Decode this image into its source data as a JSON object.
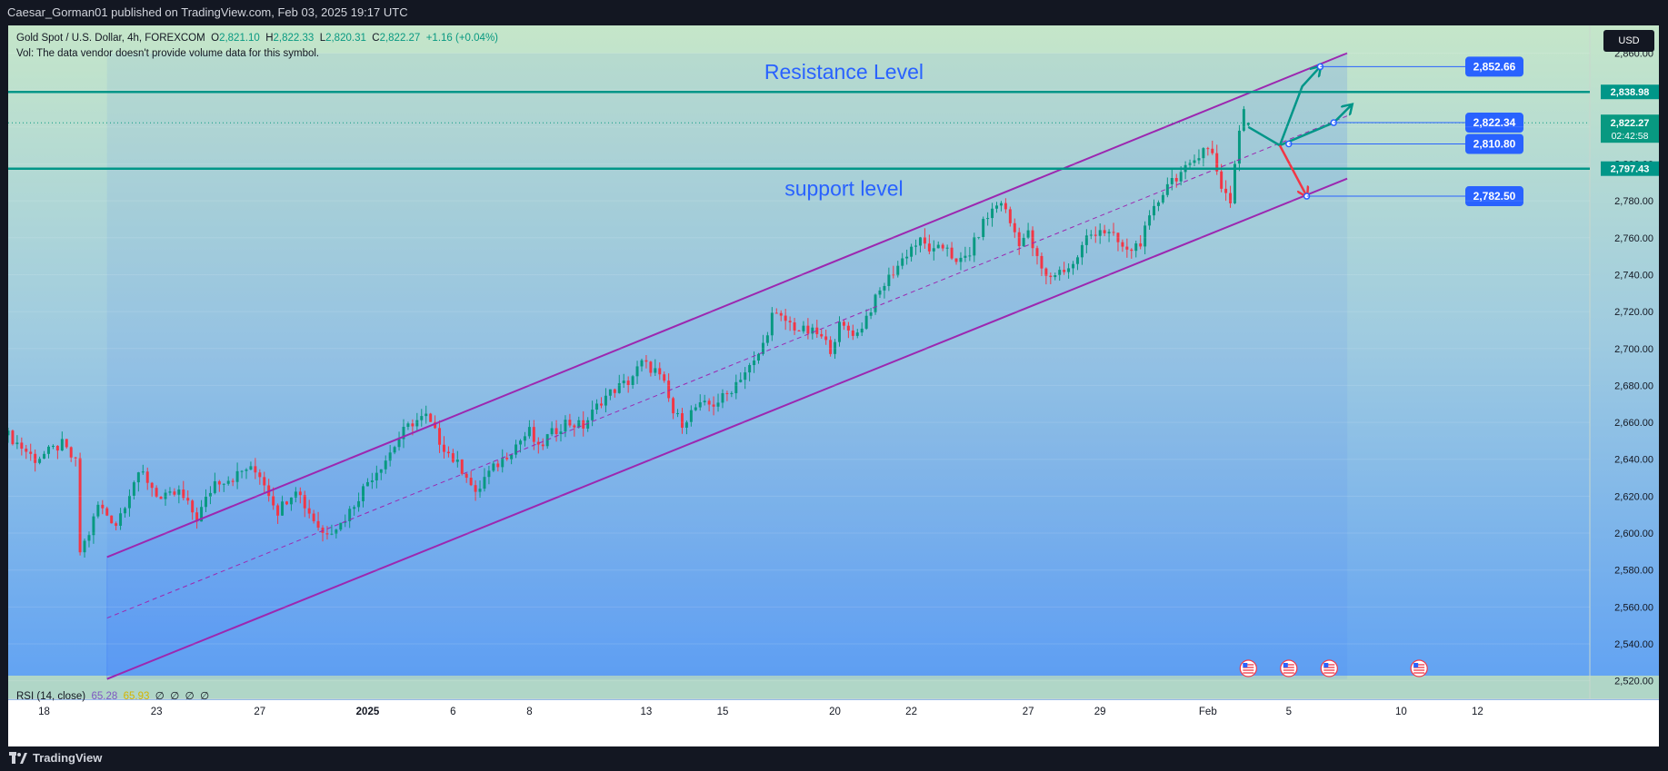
{
  "header": {
    "publisher": "Caesar_Gorman01 published on TradingView.com, Feb 03, 2025 19:17 UTC"
  },
  "legend": {
    "symbol": "Gold Spot / U.S. Dollar, 4h, FOREXCOM",
    "o_label": "O",
    "o_value": "2,821.10",
    "h_label": "H",
    "h_value": "2,822.33",
    "l_label": "L",
    "l_value": "2,820.31",
    "c_label": "C",
    "c_value": "2,822.27",
    "change": "+1.16 (+0.04%)",
    "vol_note": "Vol: The data vendor doesn't provide volume data for this symbol."
  },
  "currency_button": "USD",
  "rsi": {
    "label": "RSI (14, close)",
    "v1": "65.28",
    "v2": "65.93",
    "z1": "∅",
    "z2": "∅",
    "z3": "∅",
    "z4": "∅"
  },
  "footer": {
    "brand": "TradingView"
  },
  "colors": {
    "up": "#089981",
    "down": "#f23645",
    "channel": "#9c27b0",
    "level": "#009688",
    "label_blue": "#2962ff",
    "text_blue": "#2962ff",
    "bg_top": "#c5e6c9",
    "bg_bottom": "#5b9ef5"
  },
  "chart_data": {
    "type": "candlestick",
    "symbol": "Gold Spot / U.S. Dollar",
    "timeframe": "4h",
    "ylim": [
      2510,
      2875
    ],
    "y_ticks": [
      2520,
      2540,
      2560,
      2580,
      2600,
      2620,
      2640,
      2660,
      2680,
      2700,
      2720,
      2740,
      2760,
      2780,
      2800,
      2820,
      2840,
      2860
    ],
    "y_tick_labels": [
      "2,520.00",
      "2,540.00",
      "2,560.00",
      "2,580.00",
      "2,600.00",
      "2,620.00",
      "2,640.00",
      "2,660.00",
      "2,680.00",
      "2,700.00",
      "2,720.00",
      "2,740.00",
      "2,760.00",
      "2,780.00",
      "2,800.00",
      "2,820.00",
      "2,840.00",
      "2,860.00"
    ],
    "x_range": [
      0,
      352
    ],
    "x_ticks": [
      {
        "label": "18",
        "x": 8,
        "bold": false
      },
      {
        "label": "23",
        "x": 33,
        "bold": false
      },
      {
        "label": "27",
        "x": 56,
        "bold": false
      },
      {
        "label": "2025",
        "x": 80,
        "bold": true
      },
      {
        "label": "6",
        "x": 99,
        "bold": false
      },
      {
        "label": "8",
        "x": 116,
        "bold": false
      },
      {
        "label": "13",
        "x": 142,
        "bold": false
      },
      {
        "label": "15",
        "x": 159,
        "bold": false
      },
      {
        "label": "20",
        "x": 184,
        "bold": false
      },
      {
        "label": "22",
        "x": 201,
        "bold": false
      },
      {
        "label": "27",
        "x": 227,
        "bold": false
      },
      {
        "label": "29",
        "x": 243,
        "bold": false
      },
      {
        "label": "Feb",
        "x": 267,
        "bold": false
      },
      {
        "label": "5",
        "x": 285,
        "bold": false
      },
      {
        "label": "10",
        "x": 310,
        "bold": false
      },
      {
        "label": "12",
        "x": 327,
        "bold": false
      }
    ],
    "anchors": [
      [
        0,
        2653
      ],
      [
        6,
        2640
      ],
      [
        12,
        2648
      ],
      [
        15,
        2638
      ],
      [
        16,
        2590
      ],
      [
        18,
        2600
      ],
      [
        20,
        2615
      ],
      [
        24,
        2605
      ],
      [
        28,
        2628
      ],
      [
        30,
        2632
      ],
      [
        34,
        2618
      ],
      [
        38,
        2622
      ],
      [
        42,
        2608
      ],
      [
        46,
        2628
      ],
      [
        50,
        2630
      ],
      [
        53,
        2635
      ],
      [
        56,
        2632
      ],
      [
        58,
        2622
      ],
      [
        60,
        2612
      ],
      [
        64,
        2625
      ],
      [
        66,
        2615
      ],
      [
        70,
        2600
      ],
      [
        74,
        2605
      ],
      [
        76,
        2612
      ],
      [
        80,
        2628
      ],
      [
        84,
        2640
      ],
      [
        88,
        2655
      ],
      [
        90,
        2660
      ],
      [
        93,
        2663
      ],
      [
        96,
        2650
      ],
      [
        99,
        2640
      ],
      [
        102,
        2632
      ],
      [
        104,
        2620
      ],
      [
        106,
        2630
      ],
      [
        110,
        2640
      ],
      [
        113,
        2648
      ],
      [
        116,
        2655
      ],
      [
        118,
        2645
      ],
      [
        120,
        2652
      ],
      [
        124,
        2660
      ],
      [
        128,
        2658
      ],
      [
        132,
        2672
      ],
      [
        135,
        2678
      ],
      [
        138,
        2682
      ],
      [
        141,
        2692
      ],
      [
        144,
        2688
      ],
      [
        146,
        2680
      ],
      [
        148,
        2665
      ],
      [
        150,
        2660
      ],
      [
        153,
        2668
      ],
      [
        157,
        2670
      ],
      [
        160,
        2675
      ],
      [
        163,
        2685
      ],
      [
        166,
        2692
      ],
      [
        168,
        2702
      ],
      [
        170,
        2718
      ],
      [
        173,
        2715
      ],
      [
        176,
        2710
      ],
      [
        180,
        2708
      ],
      [
        183,
        2700
      ],
      [
        185,
        2712
      ],
      [
        189,
        2708
      ],
      [
        192,
        2722
      ],
      [
        195,
        2735
      ],
      [
        198,
        2745
      ],
      [
        201,
        2755
      ],
      [
        203,
        2758
      ],
      [
        206,
        2752
      ],
      [
        209,
        2756
      ],
      [
        211,
        2745
      ],
      [
        214,
        2752
      ],
      [
        217,
        2768
      ],
      [
        219,
        2775
      ],
      [
        221,
        2780
      ],
      [
        223,
        2768
      ],
      [
        225,
        2758
      ],
      [
        227,
        2762
      ],
      [
        229,
        2748
      ],
      [
        231,
        2738
      ],
      [
        234,
        2742
      ],
      [
        237,
        2745
      ],
      [
        240,
        2760
      ],
      [
        243,
        2765
      ],
      [
        246,
        2760
      ],
      [
        249,
        2752
      ],
      [
        252,
        2758
      ],
      [
        255,
        2775
      ],
      [
        258,
        2790
      ],
      [
        261,
        2795
      ],
      [
        263,
        2798
      ],
      [
        266,
        2810
      ],
      [
        268,
        2805
      ],
      [
        270,
        2788
      ],
      [
        272,
        2780
      ],
      [
        273,
        2800
      ],
      [
        274,
        2818
      ],
      [
        275,
        2830
      ],
      [
        276,
        2822
      ]
    ],
    "candle_count": 277,
    "last": {
      "o": 2821.1,
      "h": 2822.33,
      "l": 2820.31,
      "c": 2822.27
    },
    "channel": {
      "upper": {
        "x1": 22,
        "y1": 2587,
        "x2": 298,
        "y2": 2860
      },
      "lower": {
        "x1": 22,
        "y1": 2521,
        "x2": 298,
        "y2": 2792
      },
      "mid": {
        "x1": 22,
        "y1": 2554,
        "x2": 298,
        "y2": 2826
      },
      "box": {
        "x1": 22,
        "x2": 298
      }
    },
    "levels": [
      {
        "name": "resistance",
        "value": 2838.98,
        "label": "2,838.98"
      },
      {
        "name": "support",
        "value": 2797.43,
        "label": "2,797.43"
      }
    ],
    "current_price": {
      "value": 2822.27,
      "label": "2,822.27",
      "countdown": "02:42:58"
    },
    "text_annotations": [
      {
        "text": "Resistance Level",
        "x": 186,
        "y": 2838.98
      },
      {
        "text": "support level",
        "x": 186,
        "y": 2797.43
      }
    ],
    "projection_points": [
      {
        "x": 292,
        "y": 2852.66,
        "label": "2,852.66"
      },
      {
        "x": 295,
        "y": 2822.34,
        "label": "2,822.34"
      },
      {
        "x": 285,
        "y": 2810.8,
        "label": "2,810.80"
      },
      {
        "x": 289,
        "y": 2782.5,
        "label": "2,782.50"
      }
    ],
    "projection_up": [
      [
        276,
        2820
      ],
      [
        283,
        2810
      ],
      [
        288,
        2842
      ],
      [
        292,
        2852.66
      ]
    ],
    "projection_up2": [
      [
        283,
        2810
      ],
      [
        295,
        2822.34
      ],
      [
        299,
        2832
      ]
    ],
    "projection_down": [
      [
        283,
        2810
      ],
      [
        289,
        2782.5
      ]
    ],
    "event_markers_x": [
      276,
      285,
      294,
      314
    ]
  }
}
